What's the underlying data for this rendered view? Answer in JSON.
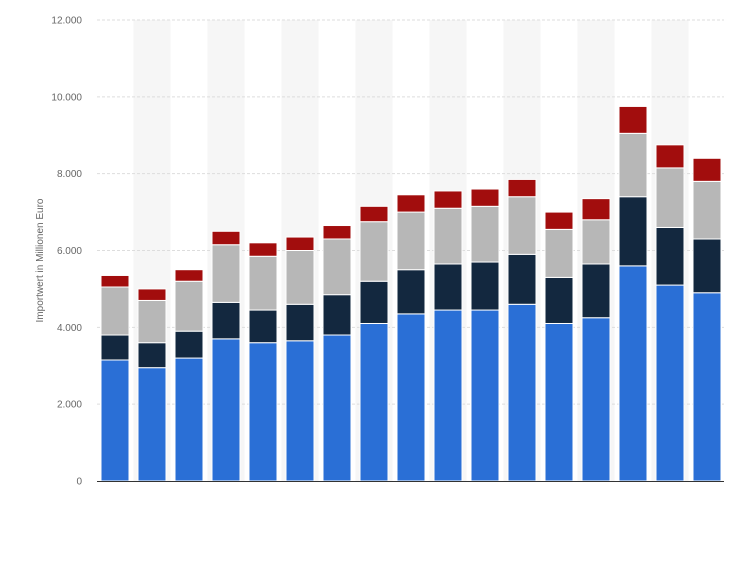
{
  "chart_data": {
    "type": "bar",
    "stacked": true,
    "ylabel": "Importwert in Millionen Euro",
    "ylim": [
      0,
      12000
    ],
    "yticks": [
      0,
      2000,
      4000,
      6000,
      8000,
      10000,
      12000
    ],
    "ytick_labels": [
      "0",
      "2.000",
      "4.000",
      "6.000",
      "8.000",
      "10.000",
      "12.000"
    ],
    "grid": true,
    "bar_count": 17,
    "series": [
      {
        "color": "#2a6fd6",
        "values": [
          3150,
          2950,
          3200,
          3700,
          3600,
          3650,
          3800,
          4100,
          4350,
          4450,
          4450,
          4600,
          4100,
          4250,
          5600,
          5100,
          4900
        ]
      },
      {
        "color": "#13283f",
        "values": [
          650,
          650,
          700,
          950,
          850,
          950,
          1050,
          1100,
          1150,
          1200,
          1250,
          1300,
          1200,
          1400,
          1800,
          1500,
          1400
        ]
      },
      {
        "color": "#b7b7b7",
        "values": [
          1250,
          1100,
          1300,
          1500,
          1400,
          1400,
          1450,
          1550,
          1500,
          1450,
          1450,
          1500,
          1250,
          1150,
          1650,
          1550,
          1500
        ]
      },
      {
        "color": "#a20d0d",
        "values": [
          300,
          300,
          300,
          350,
          350,
          350,
          350,
          400,
          450,
          450,
          450,
          450,
          450,
          550,
          700,
          600,
          600
        ]
      }
    ]
  }
}
